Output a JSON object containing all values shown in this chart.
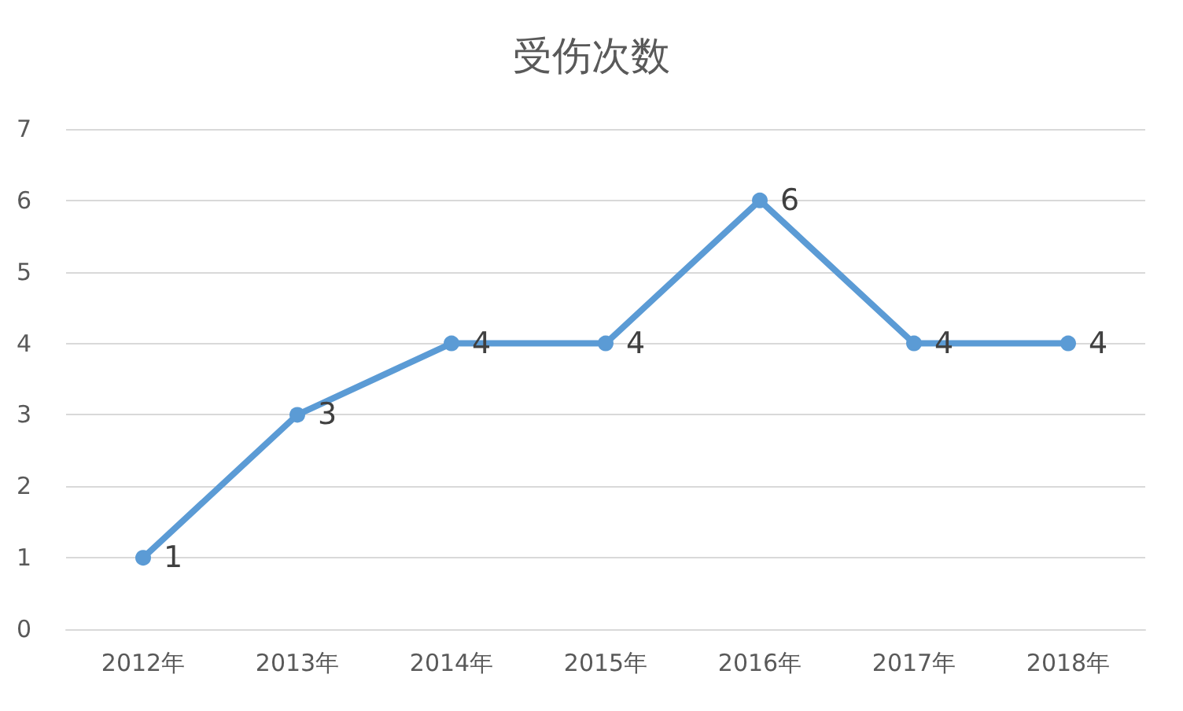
{
  "chart_data": {
    "type": "line",
    "title": "受伤次数",
    "categories": [
      "2012年",
      "2013年",
      "2014年",
      "2015年",
      "2016年",
      "2017年",
      "2018年"
    ],
    "series": [
      {
        "color": "#5b9bd5",
        "values": [
          1,
          3,
          4,
          4,
          6,
          4,
          4
        ]
      }
    ],
    "ylim": [
      0,
      7
    ],
    "yticks": [
      0,
      1,
      2,
      3,
      4,
      5,
      6,
      7
    ],
    "grid": "y",
    "marker": "circle",
    "line_style": "solid",
    "data_labels": true
  }
}
